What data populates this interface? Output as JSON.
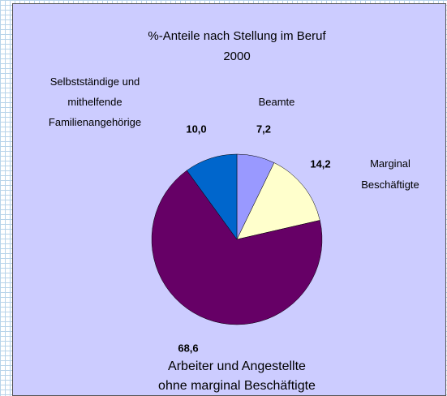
{
  "chart_data": {
    "type": "pie",
    "title": "%-Anteile nach Stellung im Beruf",
    "subtitle": "2000",
    "categories": [
      "Beamte",
      "Marginal\nBeschäftigte",
      "Arbeiter und Angestellte\nohne marginal Beschäftigte",
      "Selbstständige und\nmithelfende\nFamilienangehörige"
    ],
    "values": [
      7.2,
      14.2,
      68.6,
      10.0
    ],
    "value_labels": [
      "7,2",
      "14,2",
      "68,6",
      "10,0"
    ],
    "colors": [
      "#9999ff",
      "#ffffcc",
      "#660066",
      "#0066cc"
    ]
  }
}
